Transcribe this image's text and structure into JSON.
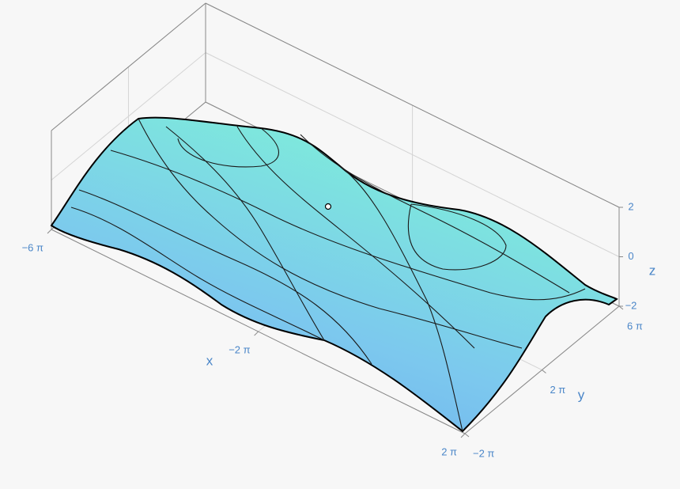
{
  "chart_data": {
    "type": "surface",
    "xlabel": "x",
    "ylabel": "y",
    "zlabel": "z",
    "xlim": [
      -18.85,
      6.28
    ],
    "ylim": [
      -6.28,
      18.85
    ],
    "zlim": [
      -2,
      2
    ],
    "xticks": [
      {
        "value": -18.85,
        "label": "−6 π"
      },
      {
        "value": -6.28,
        "label": "−2 π"
      },
      {
        "value": 6.28,
        "label": "2 π"
      }
    ],
    "yticks": [
      {
        "value": -6.28,
        "label": "−2 π"
      },
      {
        "value": 6.28,
        "label": "2 π"
      },
      {
        "value": 18.85,
        "label": "6 π"
      }
    ],
    "zticks": [
      {
        "value": -2,
        "label": "−2"
      },
      0,
      2
    ],
    "grid": true
  }
}
